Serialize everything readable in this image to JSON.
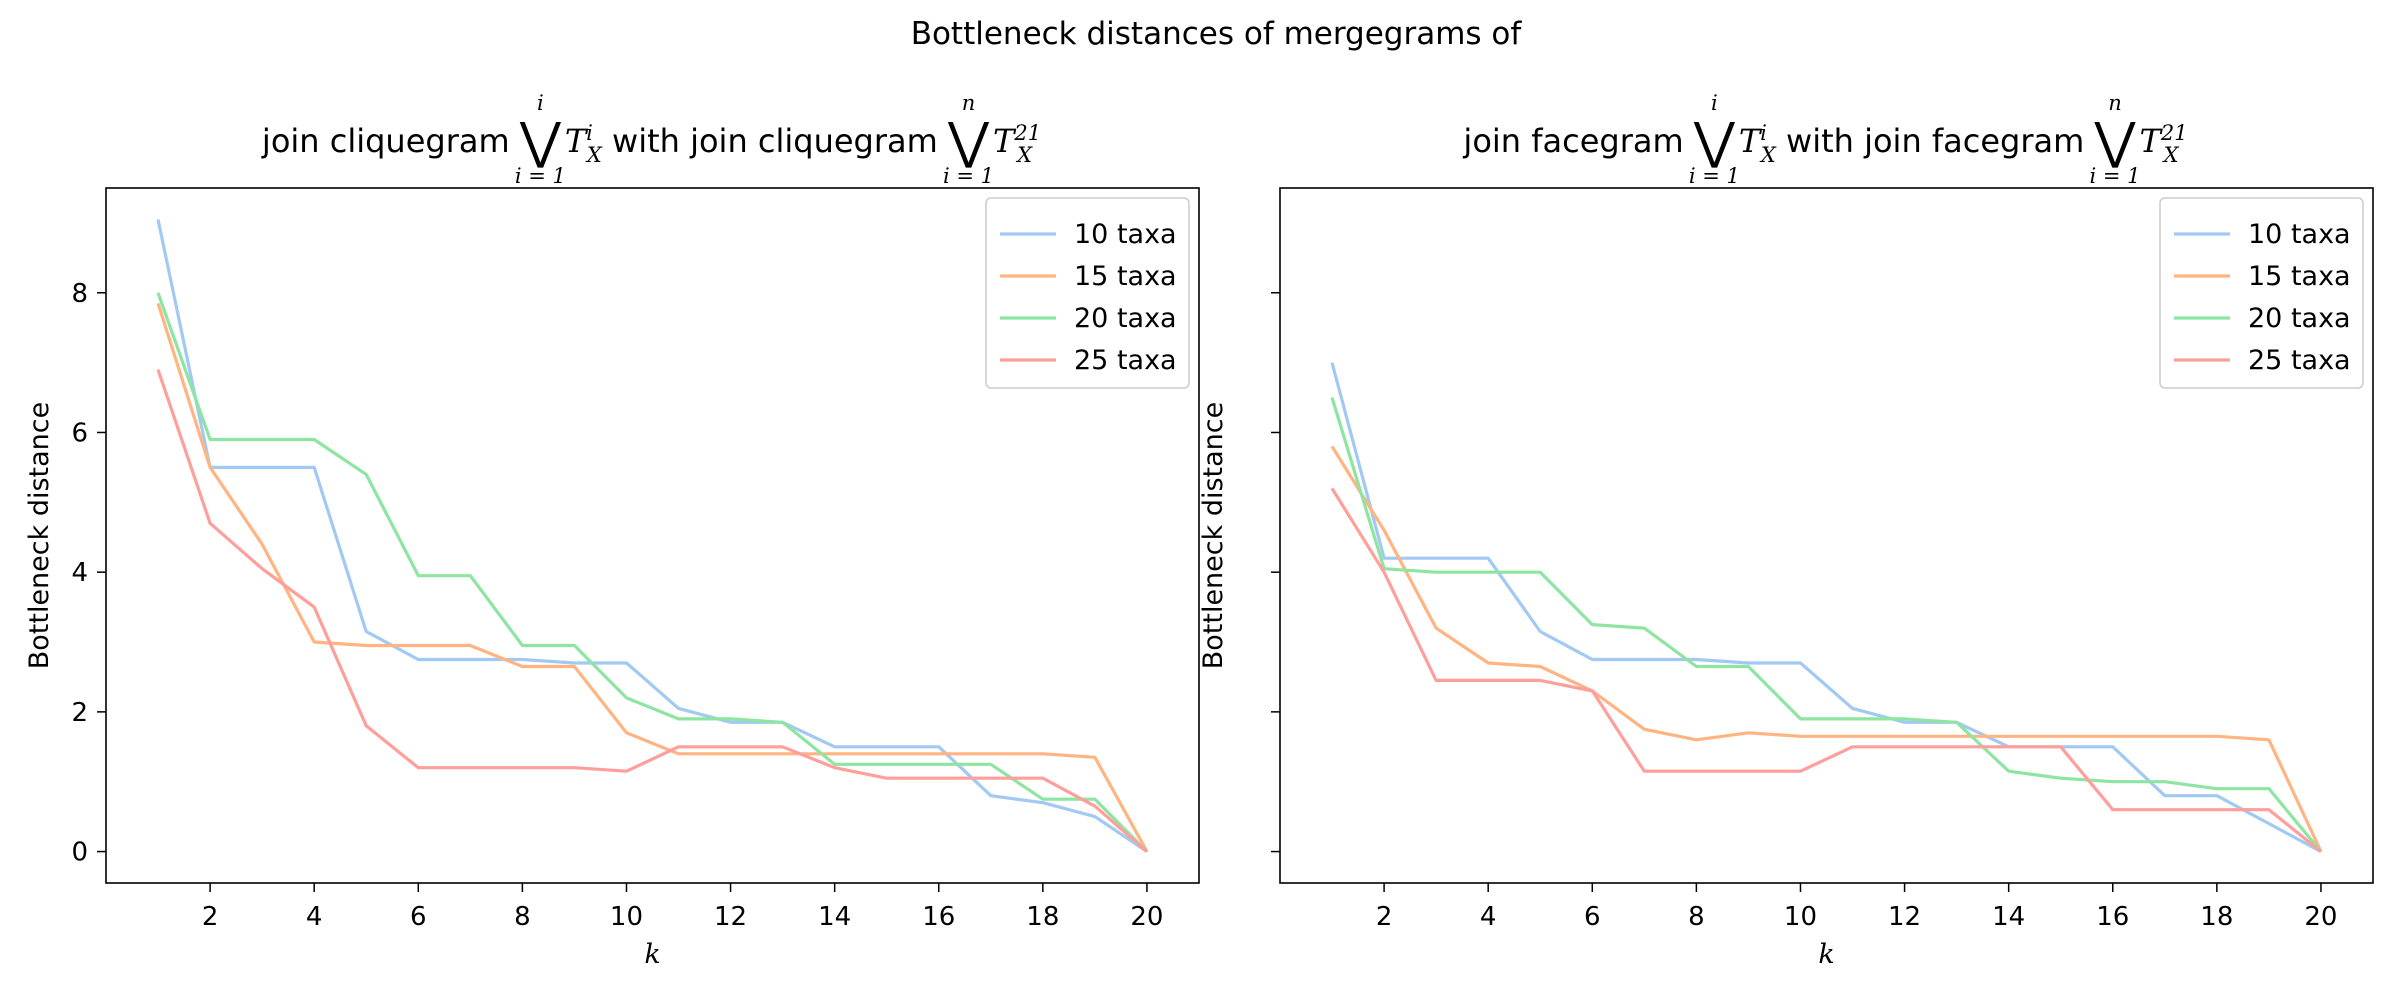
{
  "figure": {
    "suptitle": "Bottleneck distances of mergegrams of"
  },
  "chart_data": [
    {
      "type": "line",
      "title": {
        "prefix": "join cliquegram",
        "middle": "with join cliquegram",
        "op1_upper": "i",
        "op2_upper": "n",
        "op_lower": "i = 1",
        "tree_base": "T",
        "term1_sup": "i",
        "term2_sup": "21",
        "sub": "X"
      },
      "xlabel": "k",
      "ylabel": "Bottleneck distance",
      "xlim": [
        0,
        21.0
      ],
      "ylim": [
        -0.45,
        9.5
      ],
      "xticks": [
        2,
        4,
        6,
        8,
        10,
        12,
        14,
        16,
        18,
        20
      ],
      "yticks": [
        0,
        2,
        4,
        6,
        8
      ],
      "show_ytick_labels": true,
      "legend_position": "top-right",
      "x": [
        1,
        2,
        3,
        4,
        5,
        6,
        7,
        8,
        9,
        10,
        11,
        12,
        13,
        14,
        15,
        16,
        17,
        18,
        19,
        20
      ],
      "series": [
        {
          "name": "10 taxa",
          "color": "#a1c9f4",
          "values": [
            9.05,
            5.5,
            5.5,
            5.5,
            3.15,
            2.75,
            2.75,
            2.75,
            2.7,
            2.7,
            2.05,
            1.85,
            1.85,
            1.5,
            1.5,
            1.5,
            0.8,
            0.7,
            0.5,
            0.0
          ]
        },
        {
          "name": "15 taxa",
          "color": "#ffb482",
          "values": [
            7.85,
            5.5,
            4.4,
            3.0,
            2.95,
            2.95,
            2.95,
            2.65,
            2.65,
            1.7,
            1.4,
            1.4,
            1.4,
            1.4,
            1.4,
            1.4,
            1.4,
            1.4,
            1.35,
            0.0
          ]
        },
        {
          "name": "20 taxa",
          "color": "#8de5a1",
          "values": [
            8.0,
            5.9,
            5.9,
            5.9,
            5.4,
            3.95,
            3.95,
            2.95,
            2.95,
            2.2,
            1.9,
            1.9,
            1.85,
            1.25,
            1.25,
            1.25,
            1.25,
            0.75,
            0.75,
            0.0
          ]
        },
        {
          "name": "25 taxa",
          "color": "#ff9f9b",
          "values": [
            6.9,
            4.7,
            4.05,
            3.5,
            1.8,
            1.2,
            1.2,
            1.2,
            1.2,
            1.15,
            1.5,
            1.5,
            1.5,
            1.2,
            1.05,
            1.05,
            1.05,
            1.05,
            0.65,
            0.0
          ]
        }
      ]
    },
    {
      "type": "line",
      "title": {
        "prefix": "join facegram",
        "middle": "with join facegram",
        "op1_upper": "i",
        "op2_upper": "n",
        "op_lower": "i = 1",
        "tree_base": "T",
        "term1_sup": "i",
        "term2_sup": "21",
        "sub": "X"
      },
      "xlabel": "k",
      "ylabel": "Bottleneck distance",
      "xlim": [
        0,
        21.0
      ],
      "ylim": [
        -0.45,
        9.5
      ],
      "xticks": [
        2,
        4,
        6,
        8,
        10,
        12,
        14,
        16,
        18,
        20
      ],
      "yticks": [
        0,
        2,
        4,
        6,
        8
      ],
      "show_ytick_labels": false,
      "legend_position": "top-right",
      "x": [
        1,
        2,
        3,
        4,
        5,
        6,
        7,
        8,
        9,
        10,
        11,
        12,
        13,
        14,
        15,
        16,
        17,
        18,
        19,
        20
      ],
      "series": [
        {
          "name": "10 taxa",
          "color": "#a1c9f4",
          "values": [
            7.0,
            4.2,
            4.2,
            4.2,
            3.15,
            2.75,
            2.75,
            2.75,
            2.7,
            2.7,
            2.05,
            1.85,
            1.85,
            1.5,
            1.5,
            1.5,
            0.8,
            0.8,
            0.4,
            0.0
          ]
        },
        {
          "name": "15 taxa",
          "color": "#ffb482",
          "values": [
            5.8,
            4.6,
            3.2,
            2.7,
            2.65,
            2.3,
            1.75,
            1.6,
            1.7,
            1.65,
            1.65,
            1.65,
            1.65,
            1.65,
            1.65,
            1.65,
            1.65,
            1.65,
            1.6,
            0.0
          ]
        },
        {
          "name": "20 taxa",
          "color": "#8de5a1",
          "values": [
            6.5,
            4.05,
            4.0,
            4.0,
            4.0,
            3.25,
            3.2,
            2.65,
            2.65,
            1.9,
            1.9,
            1.9,
            1.85,
            1.15,
            1.05,
            1.0,
            1.0,
            0.9,
            0.9,
            0.0
          ]
        },
        {
          "name": "25 taxa",
          "color": "#ff9f9b",
          "values": [
            5.2,
            4.0,
            2.45,
            2.45,
            2.45,
            2.3,
            1.15,
            1.15,
            1.15,
            1.15,
            1.5,
            1.5,
            1.5,
            1.5,
            1.5,
            0.6,
            0.6,
            0.6,
            0.6,
            0.0
          ]
        }
      ]
    }
  ]
}
